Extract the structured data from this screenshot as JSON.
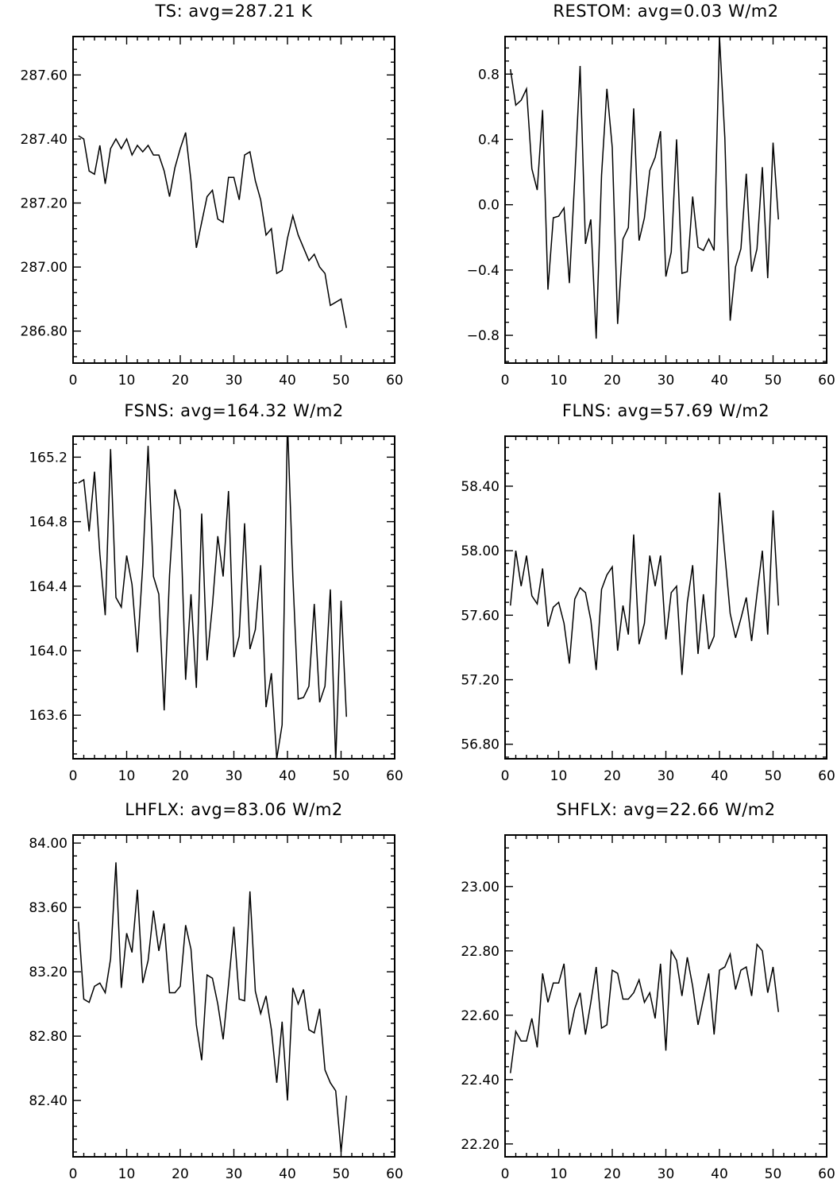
{
  "figure": {
    "line_color": "#000000",
    "background": "#ffffff"
  },
  "chart_data": [
    {
      "type": "line",
      "title": "TS: avg=287.21 K",
      "xlim": [
        0,
        60
      ],
      "ylim": [
        286.7,
        287.72
      ],
      "xticks": [
        0,
        10,
        20,
        30,
        40,
        50,
        60
      ],
      "xtick_labels": [
        "0",
        "10",
        "20",
        "30",
        "40",
        "50",
        "60"
      ],
      "yticks": [
        286.8,
        287.0,
        287.2,
        287.4,
        287.6
      ],
      "ytick_labels": [
        "286.80",
        "287.00",
        "287.20",
        "287.40",
        "287.60"
      ],
      "x": [
        1,
        2,
        3,
        4,
        5,
        6,
        7,
        8,
        9,
        10,
        11,
        12,
        13,
        14,
        15,
        16,
        17,
        18,
        19,
        20,
        21,
        22,
        23,
        24,
        25,
        26,
        27,
        28,
        29,
        30,
        31,
        32,
        33,
        34,
        35,
        36,
        37,
        38,
        39,
        40,
        41,
        42,
        43,
        44,
        45,
        46,
        47,
        48,
        49,
        50,
        51
      ],
      "values": [
        287.41,
        287.4,
        287.3,
        287.29,
        287.38,
        287.26,
        287.37,
        287.4,
        287.37,
        287.4,
        287.35,
        287.38,
        287.36,
        287.38,
        287.35,
        287.35,
        287.3,
        287.22,
        287.31,
        287.37,
        287.42,
        287.27,
        287.06,
        287.14,
        287.22,
        287.24,
        287.15,
        287.14,
        287.28,
        287.28,
        287.21,
        287.35,
        287.36,
        287.27,
        287.21,
        287.1,
        287.12,
        286.98,
        286.99,
        287.09,
        287.16,
        287.1,
        287.06,
        287.02,
        287.04,
        287.0,
        286.98,
        286.88,
        286.89,
        286.9,
        286.81
      ]
    },
    {
      "type": "line",
      "title": "RESTOM: avg=0.03 W/m2",
      "xlim": [
        0,
        60
      ],
      "ylim": [
        -0.97,
        1.03
      ],
      "xticks": [
        0,
        10,
        20,
        30,
        40,
        50,
        60
      ],
      "xtick_labels": [
        "0",
        "10",
        "20",
        "30",
        "40",
        "50",
        "60"
      ],
      "yticks": [
        -0.8,
        -0.4,
        0.0,
        0.4,
        0.8
      ],
      "ytick_labels": [
        "−0.8",
        "−0.4",
        "0.0",
        "0.4",
        "0.8"
      ],
      "x": [
        1,
        2,
        3,
        4,
        5,
        6,
        7,
        8,
        9,
        10,
        11,
        12,
        13,
        14,
        15,
        16,
        17,
        18,
        19,
        20,
        21,
        22,
        23,
        24,
        25,
        26,
        27,
        28,
        29,
        30,
        31,
        32,
        33,
        34,
        35,
        36,
        37,
        38,
        39,
        40,
        41,
        42,
        43,
        44,
        45,
        46,
        47,
        48,
        49,
        50,
        51
      ],
      "values": [
        0.83,
        0.61,
        0.64,
        0.71,
        0.22,
        0.09,
        0.58,
        -0.52,
        -0.08,
        -0.07,
        -0.02,
        -0.48,
        0.16,
        0.85,
        -0.24,
        -0.09,
        -0.82,
        0.18,
        0.71,
        0.35,
        -0.73,
        -0.21,
        -0.14,
        0.59,
        -0.22,
        -0.08,
        0.21,
        0.29,
        0.45,
        -0.44,
        -0.29,
        0.4,
        -0.42,
        -0.41,
        0.05,
        -0.26,
        -0.28,
        -0.21,
        -0.28,
        1.03,
        0.41,
        -0.71,
        -0.38,
        -0.27,
        0.19,
        -0.41,
        -0.27,
        0.23,
        -0.45,
        0.38,
        -0.09
      ]
    },
    {
      "type": "line",
      "title": "FSNS: avg=164.32 W/m2",
      "xlim": [
        0,
        60
      ],
      "ylim": [
        163.33,
        165.33
      ],
      "xticks": [
        0,
        10,
        20,
        30,
        40,
        50,
        60
      ],
      "xtick_labels": [
        "0",
        "10",
        "20",
        "30",
        "40",
        "50",
        "60"
      ],
      "yticks": [
        163.6,
        164.0,
        164.4,
        164.8,
        165.2
      ],
      "ytick_labels": [
        "163.6",
        "164.0",
        "164.4",
        "164.8",
        "165.2"
      ],
      "x": [
        1,
        2,
        3,
        4,
        5,
        6,
        7,
        8,
        9,
        10,
        11,
        12,
        13,
        14,
        15,
        16,
        17,
        18,
        19,
        20,
        21,
        22,
        23,
        24,
        25,
        26,
        27,
        28,
        29,
        30,
        31,
        32,
        33,
        34,
        35,
        36,
        37,
        38,
        39,
        40,
        41,
        42,
        43,
        44,
        45,
        46,
        47,
        48,
        49,
        50,
        51
      ],
      "values": [
        165.04,
        165.06,
        164.74,
        165.11,
        164.6,
        164.22,
        165.25,
        164.33,
        164.27,
        164.59,
        164.41,
        163.99,
        164.53,
        165.27,
        164.46,
        164.35,
        163.63,
        164.47,
        165.0,
        164.87,
        163.82,
        164.35,
        163.77,
        164.85,
        163.94,
        164.28,
        164.71,
        164.46,
        164.99,
        163.96,
        164.09,
        164.79,
        164.01,
        164.13,
        164.53,
        163.65,
        163.86,
        163.33,
        163.54,
        165.42,
        164.46,
        163.7,
        163.71,
        163.78,
        164.29,
        163.68,
        163.78,
        164.38,
        163.31,
        164.31,
        163.59
      ]
    },
    {
      "type": "line",
      "title": "FLNS: avg=57.69 W/m2",
      "xlim": [
        0,
        60
      ],
      "ylim": [
        56.71,
        58.71
      ],
      "xticks": [
        0,
        10,
        20,
        30,
        40,
        50,
        60
      ],
      "xtick_labels": [
        "0",
        "10",
        "20",
        "30",
        "40",
        "50",
        "60"
      ],
      "yticks": [
        56.8,
        57.2,
        57.6,
        58.0,
        58.4
      ],
      "ytick_labels": [
        "56.80",
        "57.20",
        "57.60",
        "58.00",
        "58.40"
      ],
      "x": [
        1,
        2,
        3,
        4,
        5,
        6,
        7,
        8,
        9,
        10,
        11,
        12,
        13,
        14,
        15,
        16,
        17,
        18,
        19,
        20,
        21,
        22,
        23,
        24,
        25,
        26,
        27,
        28,
        29,
        30,
        31,
        32,
        33,
        34,
        35,
        36,
        37,
        38,
        39,
        40,
        41,
        42,
        43,
        44,
        45,
        46,
        47,
        48,
        49,
        50,
        51
      ],
      "values": [
        57.66,
        58.0,
        57.78,
        57.97,
        57.72,
        57.67,
        57.89,
        57.53,
        57.65,
        57.68,
        57.55,
        57.3,
        57.7,
        57.77,
        57.74,
        57.57,
        57.26,
        57.76,
        57.85,
        57.9,
        57.38,
        57.66,
        57.48,
        58.1,
        57.42,
        57.55,
        57.97,
        57.78,
        57.97,
        57.45,
        57.74,
        57.78,
        57.23,
        57.68,
        57.91,
        57.36,
        57.73,
        57.39,
        57.47,
        58.36,
        57.98,
        57.61,
        57.46,
        57.58,
        57.71,
        57.44,
        57.73,
        58.0,
        57.48,
        58.25,
        57.66
      ]
    },
    {
      "type": "line",
      "title": "LHFLX: avg=83.06 W/m2",
      "xlim": [
        0,
        60
      ],
      "ylim": [
        82.05,
        84.05
      ],
      "xticks": [
        0,
        10,
        20,
        30,
        40,
        50,
        60
      ],
      "xtick_labels": [
        "0",
        "10",
        "20",
        "30",
        "40",
        "50",
        "60"
      ],
      "yticks": [
        82.4,
        82.8,
        83.2,
        83.6,
        84.0
      ],
      "ytick_labels": [
        "82.40",
        "82.80",
        "83.20",
        "83.60",
        "84.00"
      ],
      "x": [
        1,
        2,
        3,
        4,
        5,
        6,
        7,
        8,
        9,
        10,
        11,
        12,
        13,
        14,
        15,
        16,
        17,
        18,
        19,
        20,
        21,
        22,
        23,
        24,
        25,
        26,
        27,
        28,
        29,
        30,
        31,
        32,
        33,
        34,
        35,
        36,
        37,
        38,
        39,
        40,
        41,
        42,
        43,
        44,
        45,
        46,
        47,
        48,
        49,
        50,
        51
      ],
      "values": [
        83.51,
        83.03,
        83.01,
        83.11,
        83.13,
        83.07,
        83.28,
        83.88,
        83.1,
        83.44,
        83.32,
        83.71,
        83.13,
        83.27,
        83.58,
        83.33,
        83.5,
        83.07,
        83.07,
        83.11,
        83.49,
        83.34,
        82.87,
        82.65,
        83.18,
        83.16,
        83.0,
        82.78,
        83.12,
        83.48,
        83.03,
        83.02,
        83.7,
        83.08,
        82.94,
        83.05,
        82.84,
        82.51,
        82.89,
        82.4,
        83.1,
        83.0,
        83.09,
        82.84,
        82.82,
        82.97,
        82.59,
        82.51,
        82.46,
        82.08,
        82.43
      ]
    },
    {
      "type": "line",
      "title": "SHFLX: avg=22.66 W/m2",
      "xlim": [
        0,
        60
      ],
      "ylim": [
        22.16,
        23.16
      ],
      "xticks": [
        0,
        10,
        20,
        30,
        40,
        50,
        60
      ],
      "xtick_labels": [
        "0",
        "10",
        "20",
        "30",
        "40",
        "50",
        "60"
      ],
      "yticks": [
        22.2,
        22.4,
        22.6,
        22.8,
        23.0
      ],
      "ytick_labels": [
        "22.20",
        "22.40",
        "22.60",
        "22.80",
        "23.00"
      ],
      "x": [
        1,
        2,
        3,
        4,
        5,
        6,
        7,
        8,
        9,
        10,
        11,
        12,
        13,
        14,
        15,
        16,
        17,
        18,
        19,
        20,
        21,
        22,
        23,
        24,
        25,
        26,
        27,
        28,
        29,
        30,
        31,
        32,
        33,
        34,
        35,
        36,
        37,
        38,
        39,
        40,
        41,
        42,
        43,
        44,
        45,
        46,
        47,
        48,
        49,
        50,
        51
      ],
      "values": [
        22.42,
        22.55,
        22.52,
        22.52,
        22.59,
        22.5,
        22.73,
        22.64,
        22.7,
        22.7,
        22.76,
        22.54,
        22.62,
        22.67,
        22.54,
        22.64,
        22.75,
        22.56,
        22.57,
        22.74,
        22.73,
        22.65,
        22.65,
        22.67,
        22.71,
        22.64,
        22.67,
        22.59,
        22.76,
        22.49,
        22.8,
        22.77,
        22.66,
        22.78,
        22.69,
        22.57,
        22.65,
        22.73,
        22.54,
        22.74,
        22.75,
        22.79,
        22.68,
        22.74,
        22.75,
        22.66,
        22.82,
        22.8,
        22.67,
        22.75,
        22.61
      ]
    }
  ]
}
